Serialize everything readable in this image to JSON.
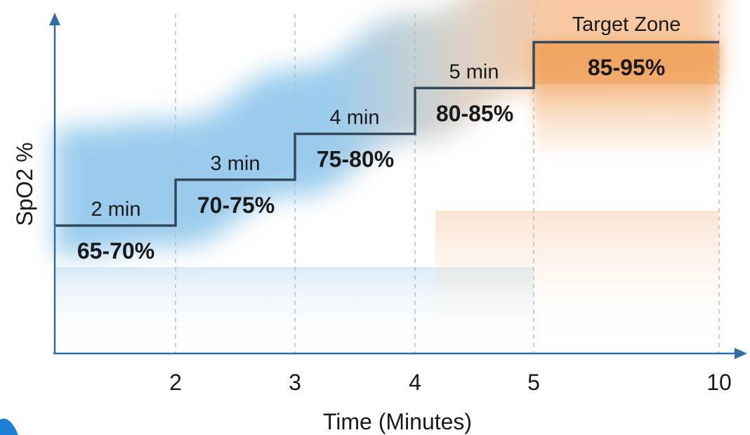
{
  "chart_data": {
    "type": "line",
    "xlabel": "Time (Minutes)",
    "ylabel": "SpO2 %",
    "x_ticks": [
      "2",
      "3",
      "4",
      "5",
      "10"
    ],
    "steps": [
      {
        "duration": "2 min",
        "range": "65-70%",
        "x_start": 1,
        "x_end": 2,
        "spo2_low": 65,
        "spo2_high": 70
      },
      {
        "duration": "3 min",
        "range": "70-75%",
        "x_start": 2,
        "x_end": 3,
        "spo2_low": 70,
        "spo2_high": 75
      },
      {
        "duration": "4 min",
        "range": "75-80%",
        "x_start": 3,
        "x_end": 4,
        "spo2_low": 75,
        "spo2_high": 80
      },
      {
        "duration": "5 min",
        "range": "80-85%",
        "x_start": 4,
        "x_end": 5,
        "spo2_low": 80,
        "spo2_high": 85
      },
      {
        "duration": "Target Zone",
        "range": "85-95%",
        "x_start": 5,
        "x_end": 10,
        "spo2_low": 85,
        "spo2_high": 95
      }
    ],
    "grid": "vertical dashed lines at x ticks",
    "colors": {
      "line": "#34485c",
      "band_blue": "#5aaae0",
      "band_orange": "#f3a565",
      "axis": "#2f6fa5",
      "grid": "#bbbbbb"
    }
  }
}
